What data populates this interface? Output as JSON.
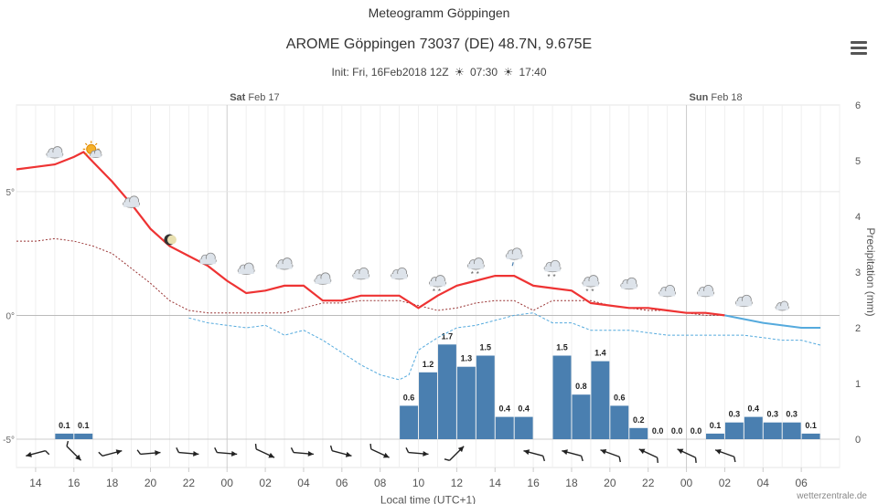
{
  "chart_data": {
    "type": "meteogram",
    "title": "Meteogramm Göppingen",
    "subtitle": "AROME Göppingen 73037 (DE) 48.7N, 9.675E",
    "init": {
      "prefix": "Init: Fri, 16Feb2018 12Z",
      "sunrise": "07:30",
      "sunset": "17:40",
      "sunrise_icon": "sunrise-icon",
      "sunset_icon": "sunset-icon"
    },
    "day_labels": [
      {
        "day": "Sat",
        "date": "Feb 17",
        "hour": 0
      },
      {
        "day": "Sun",
        "date": "Feb 18",
        "hour": 24
      }
    ],
    "x_tick_labels": [
      "14",
      "16",
      "18",
      "20",
      "22",
      "00",
      "02",
      "04",
      "06",
      "08",
      "10",
      "12",
      "14",
      "16",
      "18",
      "20",
      "22",
      "00",
      "02",
      "04",
      "06"
    ],
    "x_ticks_hours": [
      -10,
      -8,
      -6,
      -4,
      -2,
      0,
      2,
      4,
      6,
      8,
      10,
      12,
      14,
      16,
      18,
      20,
      22,
      24,
      26,
      28,
      30
    ],
    "xlim_hours": [
      -11,
      32
    ],
    "xlabel": "Local time (UTC+1)",
    "y_left": {
      "ticks": [
        "5°",
        "0°",
        "-5°"
      ],
      "values": [
        5,
        0,
        -5
      ],
      "range": [
        -5,
        8.5
      ]
    },
    "y_right": {
      "label": "Precipitation (mm)",
      "ticks": [
        "0",
        "1",
        "2",
        "3",
        "4",
        "5",
        "6"
      ],
      "range": [
        0,
        6
      ]
    },
    "temperature": {
      "color": "#ee3333",
      "hours": [
        -11,
        -10,
        -9,
        -8,
        -7.5,
        -7,
        -6,
        -5,
        -4,
        -3,
        -2,
        -1,
        0,
        1,
        2,
        3,
        4,
        5,
        6,
        7,
        8,
        9,
        10,
        11,
        12,
        13,
        14,
        15,
        16,
        17,
        18,
        19,
        20,
        21,
        22,
        23,
        24,
        25,
        26
      ],
      "values": [
        5.9,
        6.0,
        6.1,
        6.4,
        6.6,
        6.2,
        5.4,
        4.5,
        3.5,
        2.8,
        2.4,
        2.0,
        1.4,
        0.9,
        1.0,
        1.2,
        1.2,
        0.6,
        0.6,
        0.8,
        0.8,
        0.8,
        0.3,
        0.8,
        1.2,
        1.4,
        1.6,
        1.6,
        1.2,
        1.1,
        1.0,
        0.5,
        0.4,
        0.3,
        0.3,
        0.2,
        0.1,
        0.1,
        0.0
      ]
    },
    "temperature_forecast": {
      "color": "#55aadd",
      "hours": [
        26,
        28,
        30,
        31
      ],
      "values": [
        0.0,
        -0.3,
        -0.5,
        -0.5
      ]
    },
    "dewpoint": {
      "color": "#993333",
      "hours": [
        -11,
        -10,
        -9,
        -8,
        -7,
        -6,
        -5,
        -4,
        -3,
        -2,
        -1,
        0,
        1,
        2,
        3,
        4,
        5,
        6,
        7,
        8,
        9,
        10,
        11,
        12,
        13,
        14,
        15,
        16,
        17,
        18,
        19,
        20,
        21,
        22,
        23,
        24,
        25,
        26
      ],
      "values": [
        3.0,
        3.0,
        3.1,
        3.0,
        2.8,
        2.5,
        1.9,
        1.3,
        0.6,
        0.2,
        0.1,
        0.1,
        0.1,
        0.1,
        0.1,
        0.3,
        0.5,
        0.5,
        0.6,
        0.6,
        0.6,
        0.4,
        0.2,
        0.3,
        0.5,
        0.6,
        0.6,
        0.2,
        0.6,
        0.6,
        0.6,
        0.4,
        0.3,
        0.2,
        0.2,
        0.1,
        0.0,
        0.0
      ]
    },
    "dewpoint_forecast": {
      "color": "#55aadd",
      "hours": [
        -2,
        -1,
        0,
        1,
        2,
        3,
        4,
        5,
        6,
        7,
        8,
        9,
        9.5,
        10,
        11,
        12,
        13,
        14,
        15,
        16,
        17,
        18,
        19,
        20,
        21,
        22,
        23,
        24,
        25,
        26,
        27,
        28,
        29,
        30,
        31
      ],
      "values": [
        -0.1,
        -0.3,
        -0.4,
        -0.5,
        -0.4,
        -0.8,
        -0.6,
        -1.0,
        -1.5,
        -2.0,
        -2.4,
        -2.6,
        -2.4,
        -1.4,
        -0.9,
        -0.5,
        -0.4,
        -0.2,
        0.0,
        0.1,
        -0.3,
        -0.3,
        -0.6,
        -0.6,
        -0.6,
        -0.7,
        -0.8,
        -0.8,
        -0.8,
        -0.8,
        -0.8,
        -0.9,
        -1.0,
        -1.0,
        -1.2
      ]
    },
    "precipitation": {
      "color": "#4a7fb0",
      "bars": [
        {
          "start": -9,
          "value": 0.1,
          "label": "0.1"
        },
        {
          "start": -8,
          "value": 0.1,
          "label": "0.1"
        },
        {
          "start": 9,
          "value": 0.6,
          "label": "0.6"
        },
        {
          "start": 10,
          "value": 1.2,
          "label": "1.2"
        },
        {
          "start": 11,
          "value": 1.7,
          "label": "1.7"
        },
        {
          "start": 12,
          "value": 1.3,
          "label": "1.3"
        },
        {
          "start": 13,
          "value": 1.5,
          "label": "1.5"
        },
        {
          "start": 14,
          "value": 0.4,
          "label": "0.4"
        },
        {
          "start": 15,
          "value": 0.4,
          "label": "0.4"
        },
        {
          "start": 17,
          "value": 1.5,
          "label": "1.5"
        },
        {
          "start": 18,
          "value": 0.8,
          "label": "0.8"
        },
        {
          "start": 19,
          "value": 1.4,
          "label": "1.4"
        },
        {
          "start": 20,
          "value": 0.6,
          "label": "0.6"
        },
        {
          "start": 21,
          "value": 0.2,
          "label": "0.2"
        },
        {
          "start": 22,
          "value": 0.0,
          "label": "0.0"
        },
        {
          "start": 23,
          "value": 0.0,
          "label": "0.0"
        },
        {
          "start": 24,
          "value": 0.0,
          "label": "0.0"
        },
        {
          "start": 25,
          "value": 0.1,
          "label": "0.1"
        },
        {
          "start": 26,
          "value": 0.3,
          "label": "0.3"
        },
        {
          "start": 27,
          "value": 0.4,
          "label": "0.4"
        },
        {
          "start": 28,
          "value": 0.3,
          "label": "0.3"
        },
        {
          "start": 29,
          "value": 0.3,
          "label": "0.3"
        },
        {
          "start": 30,
          "value": 0.1,
          "label": "0.1"
        }
      ]
    },
    "weather_symbols": [
      {
        "hour": -9,
        "temp": 6.1,
        "icon": "cloud"
      },
      {
        "hour": -7,
        "temp": 6.2,
        "icon": "partly-sunny"
      },
      {
        "hour": -5,
        "temp": 4.1,
        "icon": "cloud"
      },
      {
        "hour": -3,
        "temp": 2.8,
        "icon": "moon"
      },
      {
        "hour": -1,
        "temp": 1.8,
        "icon": "cloud"
      },
      {
        "hour": 1,
        "temp": 1.4,
        "icon": "cloud"
      },
      {
        "hour": 3,
        "temp": 1.6,
        "icon": "cloud"
      },
      {
        "hour": 5,
        "temp": 1.0,
        "icon": "cloud"
      },
      {
        "hour": 7,
        "temp": 1.2,
        "icon": "cloud"
      },
      {
        "hour": 9,
        "temp": 1.2,
        "icon": "cloud"
      },
      {
        "hour": 11,
        "temp": 0.9,
        "icon": "cloud-snow"
      },
      {
        "hour": 13,
        "temp": 1.6,
        "icon": "cloud-snow"
      },
      {
        "hour": 15,
        "temp": 2.0,
        "icon": "cloud-rain"
      },
      {
        "hour": 17,
        "temp": 1.5,
        "icon": "cloud-snow"
      },
      {
        "hour": 19,
        "temp": 0.9,
        "icon": "cloud-snow"
      },
      {
        "hour": 21,
        "temp": 0.8,
        "icon": "cloud"
      },
      {
        "hour": 23,
        "temp": 0.5,
        "icon": "cloud"
      },
      {
        "hour": 25,
        "temp": 0.5,
        "icon": "cloud"
      },
      {
        "hour": 27,
        "temp": 0.1,
        "icon": "cloud"
      },
      {
        "hour": 29,
        "temp": -0.1,
        "icon": "cloud-small"
      }
    ],
    "wind_arrows": [
      {
        "hour": -10,
        "direction_deg": 255
      },
      {
        "hour": -8,
        "direction_deg": 135
      },
      {
        "hour": -6,
        "direction_deg": 75
      },
      {
        "hour": -4,
        "direction_deg": 85
      },
      {
        "hour": -2,
        "direction_deg": 95
      },
      {
        "hour": 0,
        "direction_deg": 95
      },
      {
        "hour": 2,
        "direction_deg": 115
      },
      {
        "hour": 4,
        "direction_deg": 95
      },
      {
        "hour": 6,
        "direction_deg": 105
      },
      {
        "hour": 8,
        "direction_deg": 115
      },
      {
        "hour": 10,
        "direction_deg": 95
      },
      {
        "hour": 12,
        "direction_deg": 45
      },
      {
        "hour": 16,
        "direction_deg": 285
      },
      {
        "hour": 18,
        "direction_deg": 285
      },
      {
        "hour": 20,
        "direction_deg": 290
      },
      {
        "hour": 22,
        "direction_deg": 295
      },
      {
        "hour": 24,
        "direction_deg": 295
      },
      {
        "hour": 26,
        "direction_deg": 290
      }
    ]
  },
  "credit": "wetterzentrale.de",
  "menu_icon": "hamburger-menu-icon"
}
